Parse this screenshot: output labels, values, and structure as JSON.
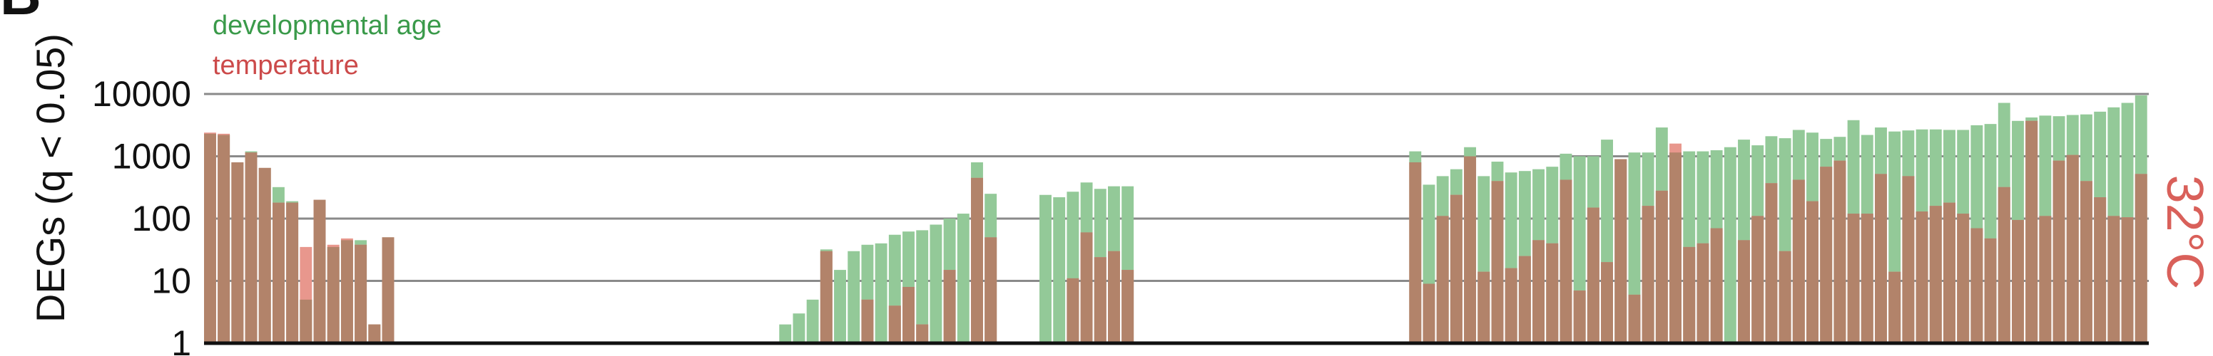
{
  "panel_letter": "B",
  "chart_data": {
    "type": "bar",
    "ylabel": "DEGs (q < 0.05)",
    "yscale": "log",
    "ylim": [
      1,
      10000
    ],
    "yticks": [
      1,
      10,
      100,
      1000,
      10000
    ],
    "ytick_labels": [
      "1",
      "10",
      "100",
      "1000",
      "10000"
    ],
    "grid": true,
    "legend_position": "top-left",
    "side_label": "32°C",
    "series": [
      {
        "name": "developmental age",
        "color": "#93c998",
        "values": [
          2300,
          2200,
          800,
          1200,
          650,
          320,
          190,
          5,
          200,
          35,
          45,
          45,
          2,
          50,
          0,
          0,
          0,
          0,
          0,
          0,
          0,
          0,
          0,
          0,
          0,
          0,
          0,
          0,
          0,
          0,
          0,
          0,
          0,
          0,
          0,
          0,
          0,
          0,
          0,
          0,
          0,
          0,
          2,
          3,
          5,
          32,
          15,
          30,
          38,
          40,
          55,
          62,
          65,
          80,
          100,
          120,
          800,
          250,
          0,
          0,
          0,
          240,
          220,
          270,
          380,
          300,
          330,
          330,
          0,
          0,
          0,
          0,
          0,
          0,
          0,
          0,
          0,
          0,
          0,
          0,
          0,
          0,
          0,
          0,
          0,
          0,
          0,
          0,
          1200,
          350,
          480,
          620,
          1400,
          480,
          820,
          550,
          580,
          620,
          680,
          1100,
          1000,
          1000,
          1850,
          900,
          1150,
          1150,
          2900,
          1150,
          1200,
          1200,
          1250,
          1400,
          1850,
          1500,
          2100,
          1950,
          2650,
          2400,
          1900,
          2050,
          3800,
          2200,
          2900,
          2500,
          2600,
          2700,
          2700,
          2650,
          2650,
          3150,
          3300,
          7200,
          3700,
          4200,
          4500,
          4400,
          4600,
          4700,
          5200,
          6100,
          7200,
          9500
        ]
      },
      {
        "name": "temperature",
        "color": "#e8978d",
        "values": [
          2400,
          2300,
          800,
          1150,
          650,
          180,
          180,
          35,
          200,
          38,
          48,
          38,
          2,
          50,
          0,
          0,
          0,
          0,
          0,
          0,
          0,
          0,
          0,
          0,
          0,
          0,
          0,
          0,
          0,
          0,
          0,
          0,
          0,
          0,
          0,
          0,
          0,
          0,
          0,
          0,
          0,
          0,
          0,
          0,
          0,
          30,
          0,
          0,
          5,
          0,
          4,
          8,
          2,
          0,
          15,
          0,
          450,
          50,
          0,
          0,
          0,
          0,
          0,
          11,
          60,
          24,
          30,
          15,
          0,
          0,
          0,
          0,
          0,
          0,
          0,
          0,
          0,
          0,
          0,
          0,
          0,
          0,
          0,
          0,
          0,
          0,
          0,
          0,
          800,
          9,
          110,
          240,
          1000,
          14,
          400,
          16,
          25,
          45,
          40,
          420,
          7,
          150,
          20,
          900,
          6,
          160,
          280,
          1600,
          35,
          40,
          70,
          1,
          45,
          110,
          370,
          30,
          420,
          190,
          680,
          850,
          120,
          120,
          520,
          14,
          480,
          130,
          160,
          180,
          120,
          70,
          48,
          320,
          95,
          3700,
          110,
          850,
          1050,
          400,
          220,
          110,
          105,
          520,
          440,
          2600
        ]
      }
    ]
  }
}
